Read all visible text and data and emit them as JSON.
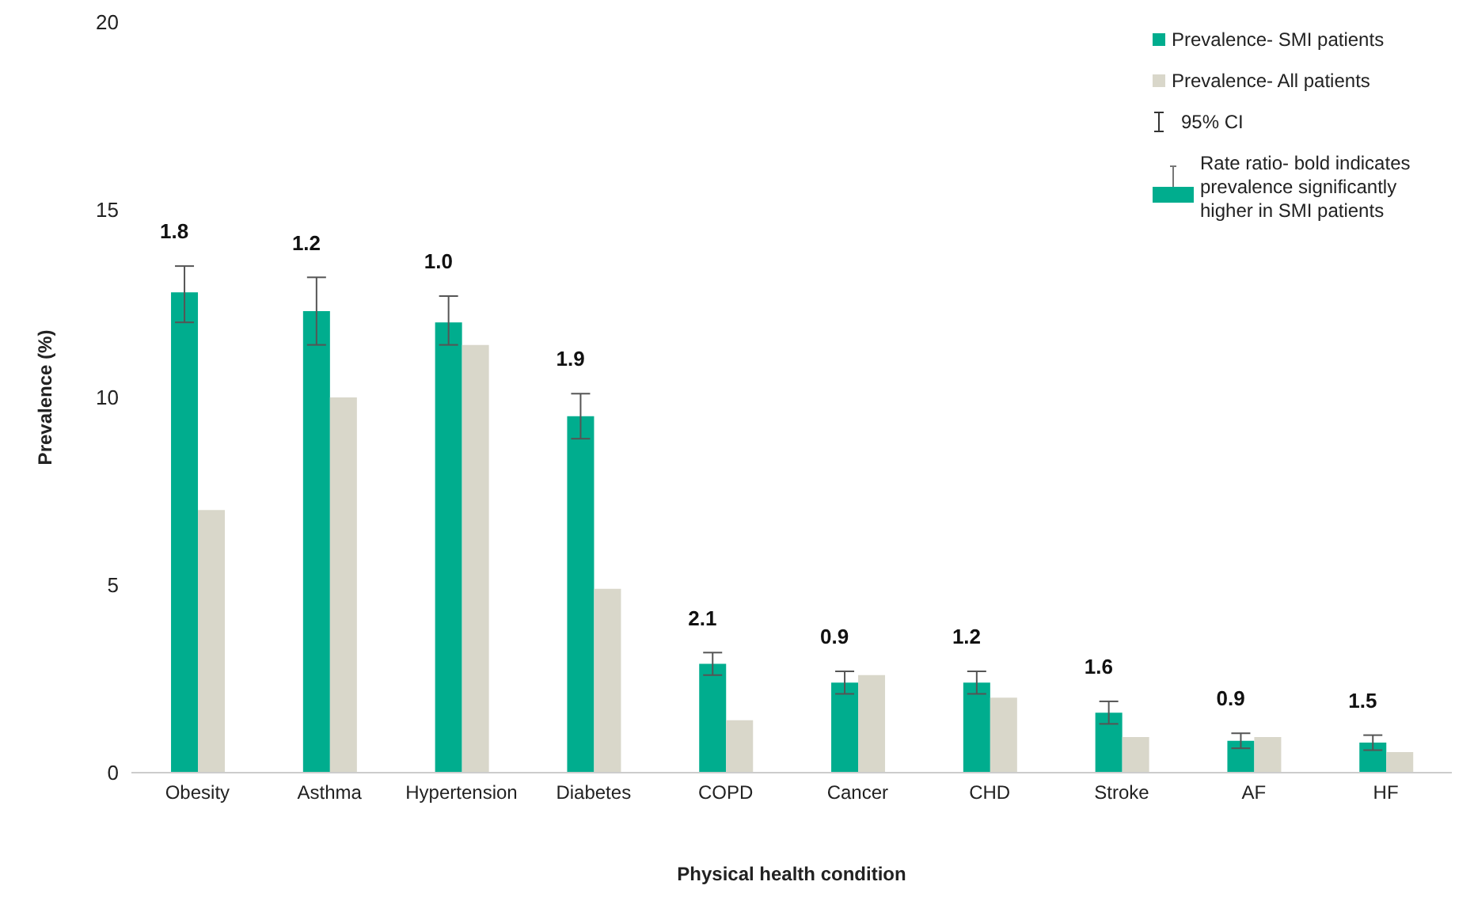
{
  "chart_data": {
    "type": "bar",
    "xlabel": "Physical health condition",
    "ylabel": "Prevalence (%)",
    "categories": [
      "Obesity",
      "Asthma",
      "Hypertension",
      "Diabetes",
      "COPD",
      "Cancer",
      "CHD",
      "Stroke",
      "AF",
      "HF"
    ],
    "series": [
      {
        "name": "Prevalence- SMI patients",
        "color": "#00ad8e",
        "values": [
          12.8,
          12.3,
          12.0,
          9.5,
          2.9,
          2.4,
          2.4,
          1.6,
          0.85,
          0.8
        ],
        "errors": [
          [
            12.0,
            13.5
          ],
          [
            11.4,
            13.2
          ],
          [
            11.4,
            12.7
          ],
          [
            8.9,
            10.1
          ],
          [
            2.6,
            3.2
          ],
          [
            2.1,
            2.7
          ],
          [
            2.1,
            2.7
          ],
          [
            1.3,
            1.9
          ],
          [
            0.65,
            1.05
          ],
          [
            0.6,
            1.0
          ]
        ]
      },
      {
        "name": "Prevalence- All patients",
        "color": "#d9d7ca",
        "values": [
          7.0,
          10.0,
          11.4,
          4.9,
          1.4,
          2.6,
          2.0,
          0.95,
          0.95,
          0.55
        ]
      }
    ],
    "ylim": [
      0,
      20
    ],
    "yticks": [
      0,
      5,
      10,
      15,
      20
    ],
    "grid": false,
    "legend": "top right",
    "annotations": [
      {
        "text": "1.8",
        "x": "Obesity",
        "y": 13.5
      },
      {
        "text": "1.2",
        "x": "Asthma",
        "y": 13.2
      },
      {
        "text": "1.0",
        "x": "Hypertension",
        "y": 12.7
      },
      {
        "text": "1.9",
        "x": "Diabetes",
        "y": 10.1
      },
      {
        "text": "2.1",
        "x": "COPD",
        "y": 3.2
      },
      {
        "text": "0.9",
        "x": "Cancer",
        "y": 2.7
      },
      {
        "text": "1.2",
        "x": "CHD",
        "y": 2.7
      },
      {
        "text": "1.6",
        "x": "Stroke",
        "y": 1.9
      },
      {
        "text": "0.9",
        "x": "AF",
        "y": 1.05
      },
      {
        "text": "1.5",
        "x": "HF",
        "y": 1.0
      },
      "95% CI",
      "Rate ratio- bold indicates prevalence significantly higher in SMI patients"
    ]
  }
}
